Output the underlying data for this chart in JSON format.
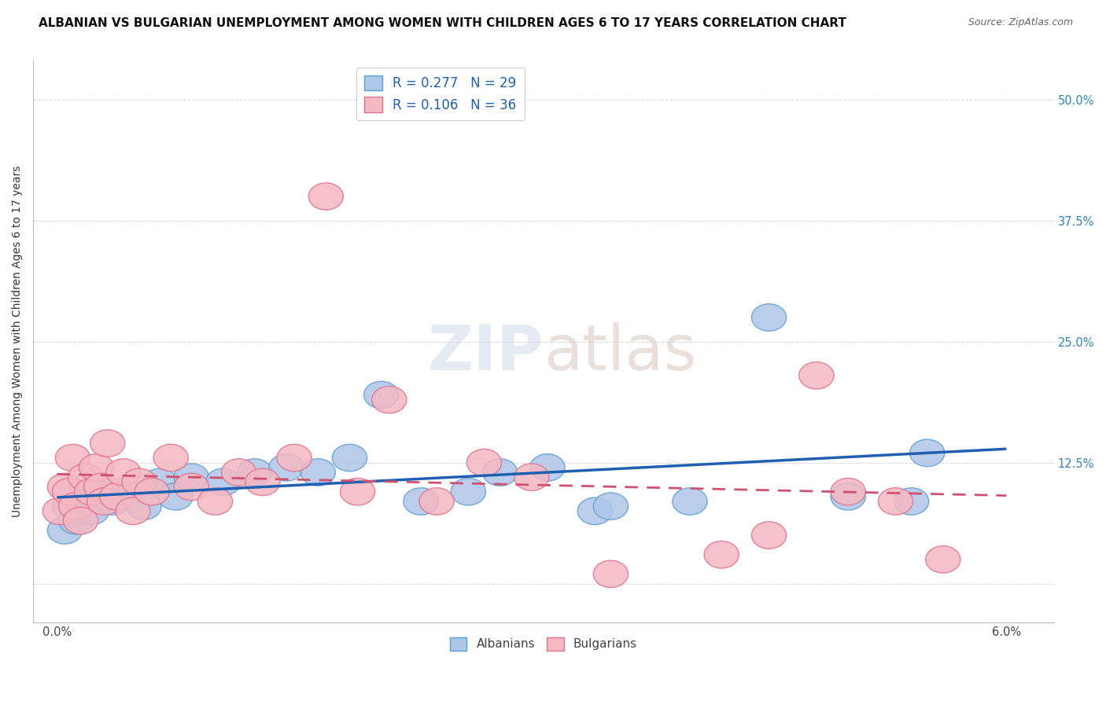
{
  "title": "ALBANIAN VS BULGARIAN UNEMPLOYMENT AMONG WOMEN WITH CHILDREN AGES 6 TO 17 YEARS CORRELATION CHART",
  "source": "Source: ZipAtlas.com",
  "ylabel": "Unemployment Among Women with Children Ages 6 to 17 years",
  "albanian_R": 0.277,
  "albanian_N": 29,
  "bulgarian_R": 0.106,
  "bulgarian_N": 36,
  "albanian_face_color": "#aec6e8",
  "albanian_edge_color": "#5a9fd4",
  "bulgarian_face_color": "#f4b8c1",
  "bulgarian_edge_color": "#e07090",
  "trendline_albanian_color": "#2060b0",
  "trendline_bulgarian_color": "#d05070",
  "background_color": "#ffffff",
  "grid_color": "#cccccc",
  "watermark_text": "ZIPatlas",
  "albanian_x": [
    0.05,
    0.08,
    0.12,
    0.18,
    0.22,
    0.28,
    0.35,
    0.42,
    0.55,
    0.65,
    0.75,
    0.85,
    1.05,
    1.25,
    1.45,
    1.65,
    1.85,
    2.05,
    2.3,
    2.6,
    2.8,
    3.1,
    3.4,
    3.5,
    4.0,
    4.5,
    5.0,
    5.4,
    5.5
  ],
  "albanian_y": [
    5.5,
    8.0,
    6.5,
    9.0,
    7.5,
    10.0,
    8.5,
    9.5,
    8.0,
    10.5,
    9.0,
    11.0,
    10.5,
    11.5,
    12.0,
    11.5,
    13.0,
    19.5,
    8.5,
    9.5,
    11.5,
    12.0,
    7.5,
    8.0,
    8.5,
    27.5,
    9.0,
    8.5,
    13.5
  ],
  "bulgarian_x": [
    0.02,
    0.05,
    0.08,
    0.1,
    0.12,
    0.15,
    0.18,
    0.22,
    0.25,
    0.28,
    0.3,
    0.32,
    0.38,
    0.42,
    0.48,
    0.52,
    0.6,
    0.72,
    0.85,
    1.0,
    1.15,
    1.3,
    1.5,
    1.7,
    1.9,
    2.1,
    2.4,
    2.7,
    3.0,
    3.5,
    4.2,
    4.5,
    4.8,
    5.0,
    5.3,
    5.6
  ],
  "bulgarian_y": [
    7.5,
    10.0,
    9.5,
    13.0,
    8.0,
    6.5,
    11.0,
    9.5,
    12.0,
    10.0,
    8.5,
    14.5,
    9.0,
    11.5,
    7.5,
    10.5,
    9.5,
    13.0,
    10.0,
    8.5,
    11.5,
    10.5,
    13.0,
    40.0,
    9.5,
    19.0,
    8.5,
    12.5,
    11.0,
    1.0,
    3.0,
    5.0,
    21.5,
    9.5,
    8.5,
    2.5
  ]
}
